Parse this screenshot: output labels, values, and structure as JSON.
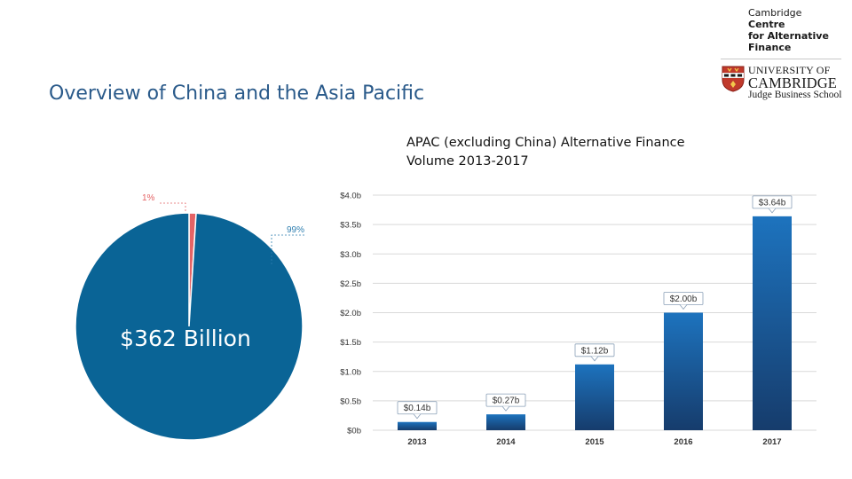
{
  "header": {
    "title": "Overview of China and the Asia Pacific"
  },
  "logos": {
    "cca_line1": "Cambridge",
    "cca_line2": "Centre",
    "cca_line3": "for Alternative",
    "cca_line4": "Finance",
    "uni_line1": "UNIVERSITY OF",
    "uni_line2": "CAMBRIDGE",
    "uni_line3": "Judge Business School"
  },
  "colors": {
    "pie_main": "#0a6496",
    "pie_small": "#e46466",
    "bar_top": "#1d73be",
    "bar_bottom": "#163c6c",
    "label_small": "#e46466",
    "label_main": "#2f7fb0",
    "title": "#2a5a8a"
  },
  "chart_data": [
    {
      "type": "pie",
      "title": "",
      "center_label": "$362 Billion",
      "slices": [
        {
          "label": "1%",
          "value": 1
        },
        {
          "label": "99%",
          "value": 99
        }
      ]
    },
    {
      "type": "bar",
      "title": "APAC (excluding China) Alternative Finance Volume 2013-2017",
      "categories": [
        "2013",
        "2014",
        "2015",
        "2016",
        "2017"
      ],
      "values": [
        0.14,
        0.27,
        1.12,
        2.0,
        3.64
      ],
      "data_labels": [
        "$0.14b",
        "$0.27b",
        "$1.12b",
        "$2.00b",
        "$3.64b"
      ],
      "ylim": [
        0,
        4
      ],
      "yticks": [
        0,
        0.5,
        1,
        1.5,
        2,
        2.5,
        3,
        3.5,
        4
      ],
      "ytick_labels": [
        "$0b",
        "$0.5b",
        "$1.0b",
        "$1.5b",
        "$2.0b",
        "$2.5b",
        "$3.0b",
        "$3.5b",
        "$4.0b"
      ],
      "xlabel": "",
      "ylabel": "",
      "grid": true
    }
  ]
}
